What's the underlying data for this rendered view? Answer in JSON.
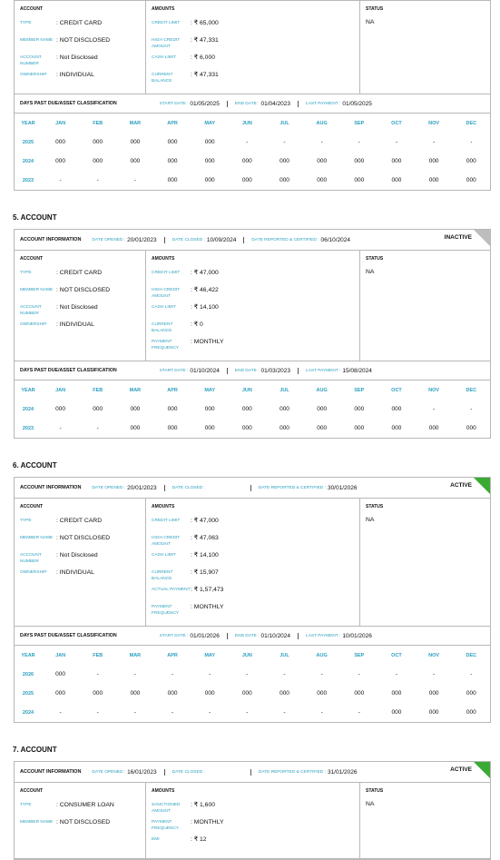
{
  "accounts": [
    {
      "sections": {
        "account_title": "ACCOUNT",
        "amounts_title": "AMOUNTS",
        "status_title": "STATUS",
        "status_value": "NA"
      },
      "account_fields": [
        {
          "label": "TYPE",
          "value": ": CREDIT CARD"
        },
        {
          "label": "MEMBER NAME",
          "value": ": NOT DISCLOSED"
        },
        {
          "label": "ACCOUNT NUMBER",
          "value": ": Not Disclosed"
        },
        {
          "label": "OWNERSHIP",
          "value": ": INDIVIDUAL"
        }
      ],
      "amount_fields": [
        {
          "label": "CREDIT LIMIT",
          "value": ": ₹ 65,000"
        },
        {
          "label": "HIGH CREDIT AMOUNT",
          "value": ": ₹ 47,331"
        },
        {
          "label": "CASH LIMIT",
          "value": ": ₹ 6,000"
        },
        {
          "label": "CURRENT BALANCE",
          "value": ": ₹ 47,331"
        }
      ],
      "extra_fields": [],
      "dpd": {
        "title": "DAYS PAST DUE/ASSET CLASSIFICATION",
        "start_label": "START DATE :",
        "start": "01/05/2025",
        "end_label": "END DATE :",
        "end": "01/04/2023",
        "last_label": "LAST PAYMENT :",
        "last": "01/05/2025",
        "columns": [
          "YEAR",
          "JAN",
          "FEB",
          "MAR",
          "APR",
          "MAY",
          "JUN",
          "JUL",
          "AUG",
          "SEP",
          "OCT",
          "NOV",
          "DEC"
        ],
        "rows": [
          [
            "2025",
            "000",
            "000",
            "000",
            "000",
            "000",
            "-",
            "-",
            "-",
            "-",
            "-",
            "-",
            "-"
          ],
          [
            "2024",
            "000",
            "000",
            "000",
            "000",
            "000",
            "000",
            "000",
            "000",
            "000",
            "000",
            "000",
            "000"
          ],
          [
            "2023",
            "-",
            "-",
            "-",
            "000",
            "000",
            "000",
            "000",
            "000",
            "000",
            "000",
            "000",
            "000"
          ]
        ]
      }
    },
    {
      "heading": "5. ACCOUNT",
      "info": {
        "label": "ACCOUNT INFORMATION",
        "opened_label": "DATE OPENED :",
        "opened": "20/01/2023",
        "closed_label": "DATE CLOSED :",
        "closed": "10/09/2024",
        "reported_label": "DATE REPORTED & CERTIFIED :",
        "reported": "06/10/2024",
        "status": "INACTIVE"
      },
      "sections": {
        "account_title": "ACCOUNT",
        "amounts_title": "AMOUNTS",
        "status_title": "STATUS",
        "status_value": "NA"
      },
      "account_fields": [
        {
          "label": "TYPE",
          "value": ": CREDIT CARD"
        },
        {
          "label": "MEMBER NAME",
          "value": ": NOT DISCLOSED"
        },
        {
          "label": "ACCOUNT NUMBER",
          "value": ": Not Disclosed"
        },
        {
          "label": "OWNERSHIP",
          "value": ": INDIVIDUAL"
        }
      ],
      "amount_fields": [
        {
          "label": "CREDIT LIMIT",
          "value": ": ₹ 47,000"
        },
        {
          "label": "HIGH CREDIT AMOUNT",
          "value": ": ₹ 46,422"
        },
        {
          "label": "CASH LIMIT",
          "value": ": ₹ 14,100"
        },
        {
          "label": "CURRENT BALANCE",
          "value": ": ₹ 0"
        }
      ],
      "extra_fields": [
        {
          "label": "PAYMENT FREQUENCY",
          "value": ": MONTHLY"
        }
      ],
      "dpd": {
        "title": "DAYS PAST DUE/ASSET CLASSIFICATION",
        "start_label": "START DATE :",
        "start": "01/10/2024",
        "end_label": "END DATE :",
        "end": "01/03/2023",
        "last_label": "LAST PAYMENT :",
        "last": "15/08/2024",
        "columns": [
          "YEAR",
          "JAN",
          "FEB",
          "MAR",
          "APR",
          "MAY",
          "JUN",
          "JUL",
          "AUG",
          "SEP",
          "OCT",
          "NOV",
          "DEC"
        ],
        "rows": [
          [
            "2024",
            "000",
            "000",
            "000",
            "000",
            "000",
            "000",
            "000",
            "000",
            "000",
            "000",
            "-",
            "-"
          ],
          [
            "2023",
            "-",
            "-",
            "000",
            "000",
            "000",
            "000",
            "000",
            "000",
            "000",
            "000",
            "000",
            "000"
          ]
        ]
      }
    },
    {
      "heading": "6. ACCOUNT",
      "info": {
        "label": "ACCOUNT INFORMATION",
        "opened_label": "DATE OPENED :",
        "opened": "20/01/2023",
        "closed_label": "DATE CLOSED :",
        "reported_label": "DATE REPORTED & CERTIFIED :",
        "reported": "30/01/2026",
        "status": "ACTIVE"
      },
      "sections": {
        "account_title": "ACCOUNT",
        "amounts_title": "AMOUNTS",
        "status_title": "STATUS",
        "status_value": "NA"
      },
      "account_fields": [
        {
          "label": "TYPE",
          "value": ": CREDIT CARD"
        },
        {
          "label": "MEMBER NAME",
          "value": ": NOT DISCLOSED"
        },
        {
          "label": "ACCOUNT NUMBER",
          "value": ": Not Disclosed"
        },
        {
          "label": "OWNERSHIP",
          "value": ": INDIVIDUAL"
        }
      ],
      "amount_fields": [
        {
          "label": "CREDIT LIMIT",
          "value": ": ₹ 47,000"
        },
        {
          "label": "HIGH CREDIT AMOUNT",
          "value": ": ₹ 47,063"
        },
        {
          "label": "CASH LIMIT",
          "value": ": ₹ 14,100"
        },
        {
          "label": "CURRENT BALANCE",
          "value": ": ₹ 15,907"
        },
        {
          "label": "ACTUAL PAYMENT",
          "value": ": ₹ 1,57,473"
        }
      ],
      "extra_fields": [
        {
          "label": "PAYMENT FREQUENCY",
          "value": ": MONTHLY"
        }
      ],
      "dpd": {
        "title": "DAYS PAST DUE/ASSET CLASSIFICATION",
        "start_label": "START DATE :",
        "start": "01/01/2026",
        "end_label": "END DATE :",
        "end": "01/10/2024",
        "last_label": "LAST PAYMENT :",
        "last": "10/01/2026",
        "columns": [
          "YEAR",
          "JAN",
          "FEB",
          "MAR",
          "APR",
          "MAY",
          "JUN",
          "JUL",
          "AUG",
          "SEP",
          "OCT",
          "NOV",
          "DEC"
        ],
        "rows": [
          [
            "2026",
            "000",
            "-",
            "-",
            "-",
            "-",
            "-",
            "-",
            "-",
            "-",
            "-",
            "-",
            "-"
          ],
          [
            "2025",
            "000",
            "000",
            "000",
            "000",
            "000",
            "000",
            "000",
            "000",
            "000",
            "000",
            "000",
            "000"
          ],
          [
            "2024",
            "-",
            "-",
            "-",
            "-",
            "-",
            "-",
            "-",
            "-",
            "-",
            "000",
            "000",
            "000"
          ]
        ]
      }
    },
    {
      "heading": "7. ACCOUNT",
      "info": {
        "label": "ACCOUNT INFORMATION",
        "opened_label": "DATE OPENED :",
        "opened": "16/01/2023",
        "closed_label": "DATE CLOSED :",
        "reported_label": "DATE REPORTED & CERTIFIED :",
        "reported": "31/01/2026",
        "status": "ACTIVE"
      },
      "sections": {
        "account_title": "ACCOUNT",
        "amounts_title": "AMOUNTS",
        "status_title": "STATUS",
        "status_value": "NA"
      },
      "account_fields": [
        {
          "label": "TYPE",
          "value": ": CONSUMER LOAN"
        },
        {
          "label": "MEMBER NAME",
          "value": ": NOT DISCLOSED"
        }
      ],
      "amount_fields": [
        {
          "label": "SANCTIONED AMOUNT",
          "value": ": ₹ 1,600"
        }
      ],
      "extra_fields": [
        {
          "label": "PAYMENT FREQUENCY",
          "value": ": MONTHLY"
        },
        {
          "label": "EMI",
          "value": ": ₹ 12"
        }
      ]
    }
  ]
}
